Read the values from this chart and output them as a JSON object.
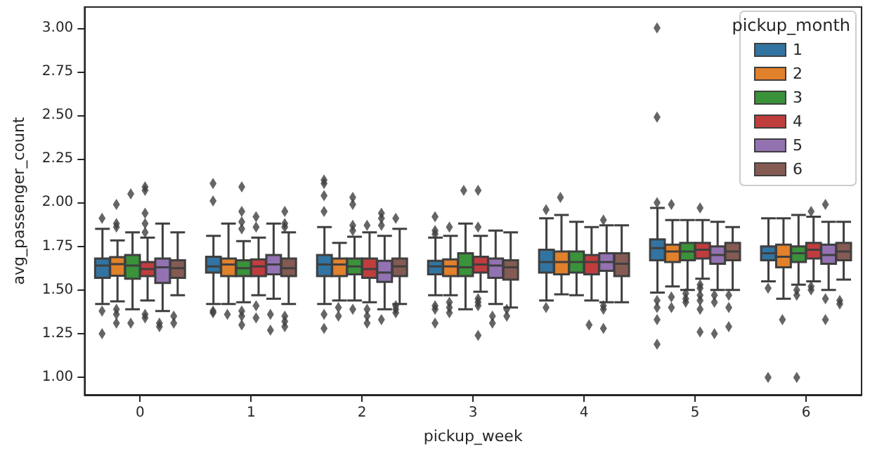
{
  "chart_data": {
    "type": "box",
    "xlabel": "pickup_week",
    "ylabel": "avg_passenger_count",
    "legend_title": "pickup_month",
    "legend": "top right",
    "grid": false,
    "marker": "diamond",
    "categories": [
      "0",
      "1",
      "2",
      "3",
      "4",
      "5",
      "6"
    ],
    "ylim": [
      0.9,
      3.12
    ],
    "yticks": [
      {
        "value": 1,
        "label": "1.00"
      },
      {
        "value": 1.25,
        "label": "1.25"
      },
      {
        "value": 1.5,
        "label": "1.50"
      },
      {
        "value": 1.75,
        "label": "1.75"
      },
      {
        "value": 2,
        "label": "2.00"
      },
      {
        "value": 2.25,
        "label": "2.25"
      },
      {
        "value": 2.5,
        "label": "2.50"
      },
      {
        "value": 2.75,
        "label": "2.75"
      },
      {
        "value": 3,
        "label": "3.00"
      }
    ],
    "series": [
      {
        "name": "1",
        "color": "#3274a1",
        "boxes": [
          {
            "low": 1.42,
            "q1": 1.57,
            "median": 1.64,
            "q3": 1.68,
            "high": 1.85,
            "outliers": [
              1.91,
              1.38,
              1.25
            ]
          },
          {
            "low": 1.42,
            "q1": 1.6,
            "median": 1.635,
            "q3": 1.69,
            "high": 1.81,
            "outliers": [
              2.11,
              2.01,
              1.38,
              1.37
            ]
          },
          {
            "low": 1.42,
            "q1": 1.58,
            "median": 1.646,
            "q3": 1.7,
            "high": 1.86,
            "outliers": [
              2.13,
              2.11,
              2.04,
              1.95,
              1.36,
              1.28
            ]
          },
          {
            "low": 1.47,
            "q1": 1.59,
            "median": 1.635,
            "q3": 1.667,
            "high": 1.8,
            "outliers": [
              1.92,
              1.84,
              1.82,
              1.41,
              1.39,
              1.31
            ]
          },
          {
            "low": 1.44,
            "q1": 1.6,
            "median": 1.66,
            "q3": 1.73,
            "high": 1.91,
            "outliers": [
              1.96,
              1.4
            ]
          },
          {
            "low": 1.485,
            "q1": 1.67,
            "median": 1.74,
            "q3": 1.79,
            "high": 1.97,
            "outliers": [
              3.0,
              2.49,
              2.0,
              1.44,
              1.4,
              1.33,
              1.19
            ]
          },
          {
            "low": 1.55,
            "q1": 1.67,
            "median": 1.71,
            "q3": 1.75,
            "high": 1.91,
            "outliers": [
              1.51,
              1.0
            ]
          }
        ]
      },
      {
        "name": "2",
        "color": "#e1812c",
        "boxes": [
          {
            "low": 1.435,
            "q1": 1.582,
            "median": 1.648,
            "q3": 1.688,
            "high": 1.784,
            "outliers": [
              1.99,
              1.88,
              1.86,
              1.39,
              1.36,
              1.31
            ]
          },
          {
            "low": 1.42,
            "q1": 1.58,
            "median": 1.646,
            "q3": 1.68,
            "high": 1.88,
            "outliers": [
              1.36
            ]
          },
          {
            "low": 1.44,
            "q1": 1.58,
            "median": 1.646,
            "q3": 1.68,
            "high": 1.77,
            "outliers": [
              1.4,
              1.35
            ]
          },
          {
            "low": 1.47,
            "q1": 1.58,
            "median": 1.635,
            "q3": 1.675,
            "high": 1.81,
            "outliers": [
              1.86,
              1.43,
              1.4,
              1.37
            ]
          },
          {
            "low": 1.475,
            "q1": 1.59,
            "median": 1.66,
            "q3": 1.72,
            "high": 1.93,
            "outliers": [
              2.03
            ]
          },
          {
            "low": 1.52,
            "q1": 1.66,
            "median": 1.72,
            "q3": 1.76,
            "high": 1.9,
            "outliers": [
              1.99,
              1.46,
              1.4
            ]
          },
          {
            "low": 1.45,
            "q1": 1.63,
            "median": 1.69,
            "q3": 1.76,
            "high": 1.91,
            "outliers": [
              1.33
            ]
          }
        ]
      },
      {
        "name": "3",
        "color": "#3a923a",
        "boxes": [
          {
            "low": 1.39,
            "q1": 1.565,
            "median": 1.64,
            "q3": 1.7,
            "high": 1.83,
            "outliers": [
              2.05,
              1.31
            ]
          },
          {
            "low": 1.43,
            "q1": 1.58,
            "median": 1.625,
            "q3": 1.67,
            "high": 1.78,
            "outliers": [
              2.09,
              1.95,
              1.89,
              1.85,
              1.38,
              1.35,
              1.3
            ]
          },
          {
            "low": 1.44,
            "q1": 1.59,
            "median": 1.635,
            "q3": 1.68,
            "high": 1.805,
            "outliers": [
              2.03,
              1.99,
              1.87,
              1.84,
              1.39
            ]
          },
          {
            "low": 1.39,
            "q1": 1.58,
            "median": 1.63,
            "q3": 1.71,
            "high": 1.88,
            "outliers": [
              2.07
            ]
          },
          {
            "low": 1.47,
            "q1": 1.6,
            "median": 1.66,
            "q3": 1.72,
            "high": 1.89
          },
          {
            "low": 1.5,
            "q1": 1.67,
            "median": 1.72,
            "q3": 1.77,
            "high": 1.9,
            "outliers": [
              1.48,
              1.45,
              1.43
            ]
          },
          {
            "low": 1.53,
            "q1": 1.66,
            "median": 1.71,
            "q3": 1.75,
            "high": 1.93,
            "outliers": [
              1.5,
              1.47,
              1.0
            ]
          }
        ]
      },
      {
        "name": "4",
        "color": "#c03d3e",
        "boxes": [
          {
            "low": 1.44,
            "q1": 1.58,
            "median": 1.62,
            "q3": 1.66,
            "high": 1.8,
            "outliers": [
              2.09,
              2.07,
              1.94,
              1.88,
              1.83,
              1.36,
              1.34
            ]
          },
          {
            "low": 1.47,
            "q1": 1.58,
            "median": 1.635,
            "q3": 1.675,
            "high": 1.8,
            "outliers": [
              1.92,
              1.86,
              1.41,
              1.34
            ]
          },
          {
            "low": 1.43,
            "q1": 1.57,
            "median": 1.62,
            "q3": 1.68,
            "high": 1.83,
            "outliers": [
              1.87,
              1.39,
              1.35,
              1.31
            ]
          },
          {
            "low": 1.49,
            "q1": 1.6,
            "median": 1.646,
            "q3": 1.69,
            "high": 1.81,
            "outliers": [
              2.07,
              1.86,
              1.45,
              1.43,
              1.41,
              1.24
            ]
          },
          {
            "low": 1.44,
            "q1": 1.59,
            "median": 1.66,
            "q3": 1.7,
            "high": 1.86,
            "outliers": [
              1.3
            ]
          },
          {
            "low": 1.565,
            "q1": 1.68,
            "median": 1.73,
            "q3": 1.77,
            "high": 1.9,
            "outliers": [
              1.97,
              1.53,
              1.51,
              1.47,
              1.44,
              1.39,
              1.26
            ]
          },
          {
            "low": 1.55,
            "q1": 1.68,
            "median": 1.73,
            "q3": 1.77,
            "high": 1.92,
            "outliers": [
              1.95,
              1.52,
              1.5
            ]
          }
        ]
      },
      {
        "name": "5",
        "color": "#9372b2",
        "boxes": [
          {
            "low": 1.38,
            "q1": 1.54,
            "median": 1.63,
            "q3": 1.68,
            "high": 1.88,
            "outliers": [
              1.31,
              1.29
            ]
          },
          {
            "low": 1.45,
            "q1": 1.59,
            "median": 1.646,
            "q3": 1.7,
            "high": 1.88,
            "outliers": [
              1.36,
              1.27
            ]
          },
          {
            "low": 1.39,
            "q1": 1.546,
            "median": 1.6,
            "q3": 1.667,
            "high": 1.81,
            "outliers": [
              1.94,
              1.91,
              1.87,
              1.33
            ]
          },
          {
            "low": 1.42,
            "q1": 1.57,
            "median": 1.64,
            "q3": 1.68,
            "high": 1.84,
            "outliers": [
              1.35,
              1.31
            ]
          },
          {
            "low": 1.43,
            "q1": 1.61,
            "median": 1.66,
            "q3": 1.71,
            "high": 1.87,
            "outliers": [
              1.9,
              1.41,
              1.39,
              1.28
            ]
          },
          {
            "low": 1.5,
            "q1": 1.65,
            "median": 1.7,
            "q3": 1.75,
            "high": 1.89,
            "outliers": [
              1.47,
              1.43,
              1.25
            ]
          },
          {
            "low": 1.5,
            "q1": 1.65,
            "median": 1.7,
            "q3": 1.76,
            "high": 1.89,
            "outliers": [
              1.99,
              1.45,
              1.33
            ]
          }
        ]
      },
      {
        "name": "6",
        "color": "#845b53",
        "boxes": [
          {
            "low": 1.47,
            "q1": 1.57,
            "median": 1.625,
            "q3": 1.67,
            "high": 1.83,
            "outliers": [
              1.35,
              1.31
            ]
          },
          {
            "low": 1.42,
            "q1": 1.58,
            "median": 1.625,
            "q3": 1.68,
            "high": 1.83,
            "outliers": [
              1.95,
              1.88,
              1.86,
              1.35,
              1.32,
              1.29
            ]
          },
          {
            "low": 1.42,
            "q1": 1.58,
            "median": 1.635,
            "q3": 1.68,
            "high": 1.85,
            "outliers": [
              1.91,
              1.41,
              1.39,
              1.37
            ]
          },
          {
            "low": 1.4,
            "q1": 1.56,
            "median": 1.63,
            "q3": 1.67,
            "high": 1.83,
            "outliers": [
              1.39,
              1.35
            ]
          },
          {
            "low": 1.43,
            "q1": 1.58,
            "median": 1.65,
            "q3": 1.71,
            "high": 1.87
          },
          {
            "low": 1.5,
            "q1": 1.67,
            "median": 1.72,
            "q3": 1.77,
            "high": 1.86,
            "outliers": [
              1.47,
              1.4,
              1.29
            ]
          },
          {
            "low": 1.56,
            "q1": 1.67,
            "median": 1.72,
            "q3": 1.77,
            "high": 1.89,
            "outliers": [
              1.44,
              1.42
            ]
          }
        ]
      }
    ]
  }
}
